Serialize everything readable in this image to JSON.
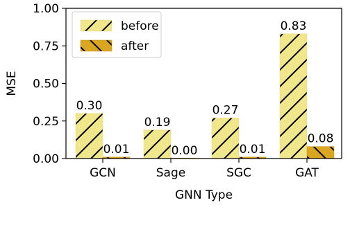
{
  "chart_data": {
    "type": "bar",
    "xlabel": "GNN Type",
    "ylabel": "MSE",
    "categories": [
      "GCN",
      "Sage",
      "SGC",
      "GAT"
    ],
    "series": [
      {
        "name": "before",
        "values": [
          0.3,
          0.19,
          0.27,
          0.83
        ],
        "labels": [
          "0.30",
          "0.19",
          "0.27",
          "0.83"
        ],
        "color": "#f0e68c",
        "hatch": "/"
      },
      {
        "name": "after",
        "values": [
          0.01,
          0.0,
          0.01,
          0.08
        ],
        "labels": [
          "0.01",
          "0.00",
          "0.01",
          "0.08"
        ],
        "color": "#daa520",
        "hatch": "\\"
      }
    ],
    "ylim": [
      0,
      1.0
    ],
    "yticks": [
      "0.00",
      "0.25",
      "0.50",
      "0.75",
      "1.00"
    ],
    "grid": false,
    "legend_position": "top-left"
  }
}
